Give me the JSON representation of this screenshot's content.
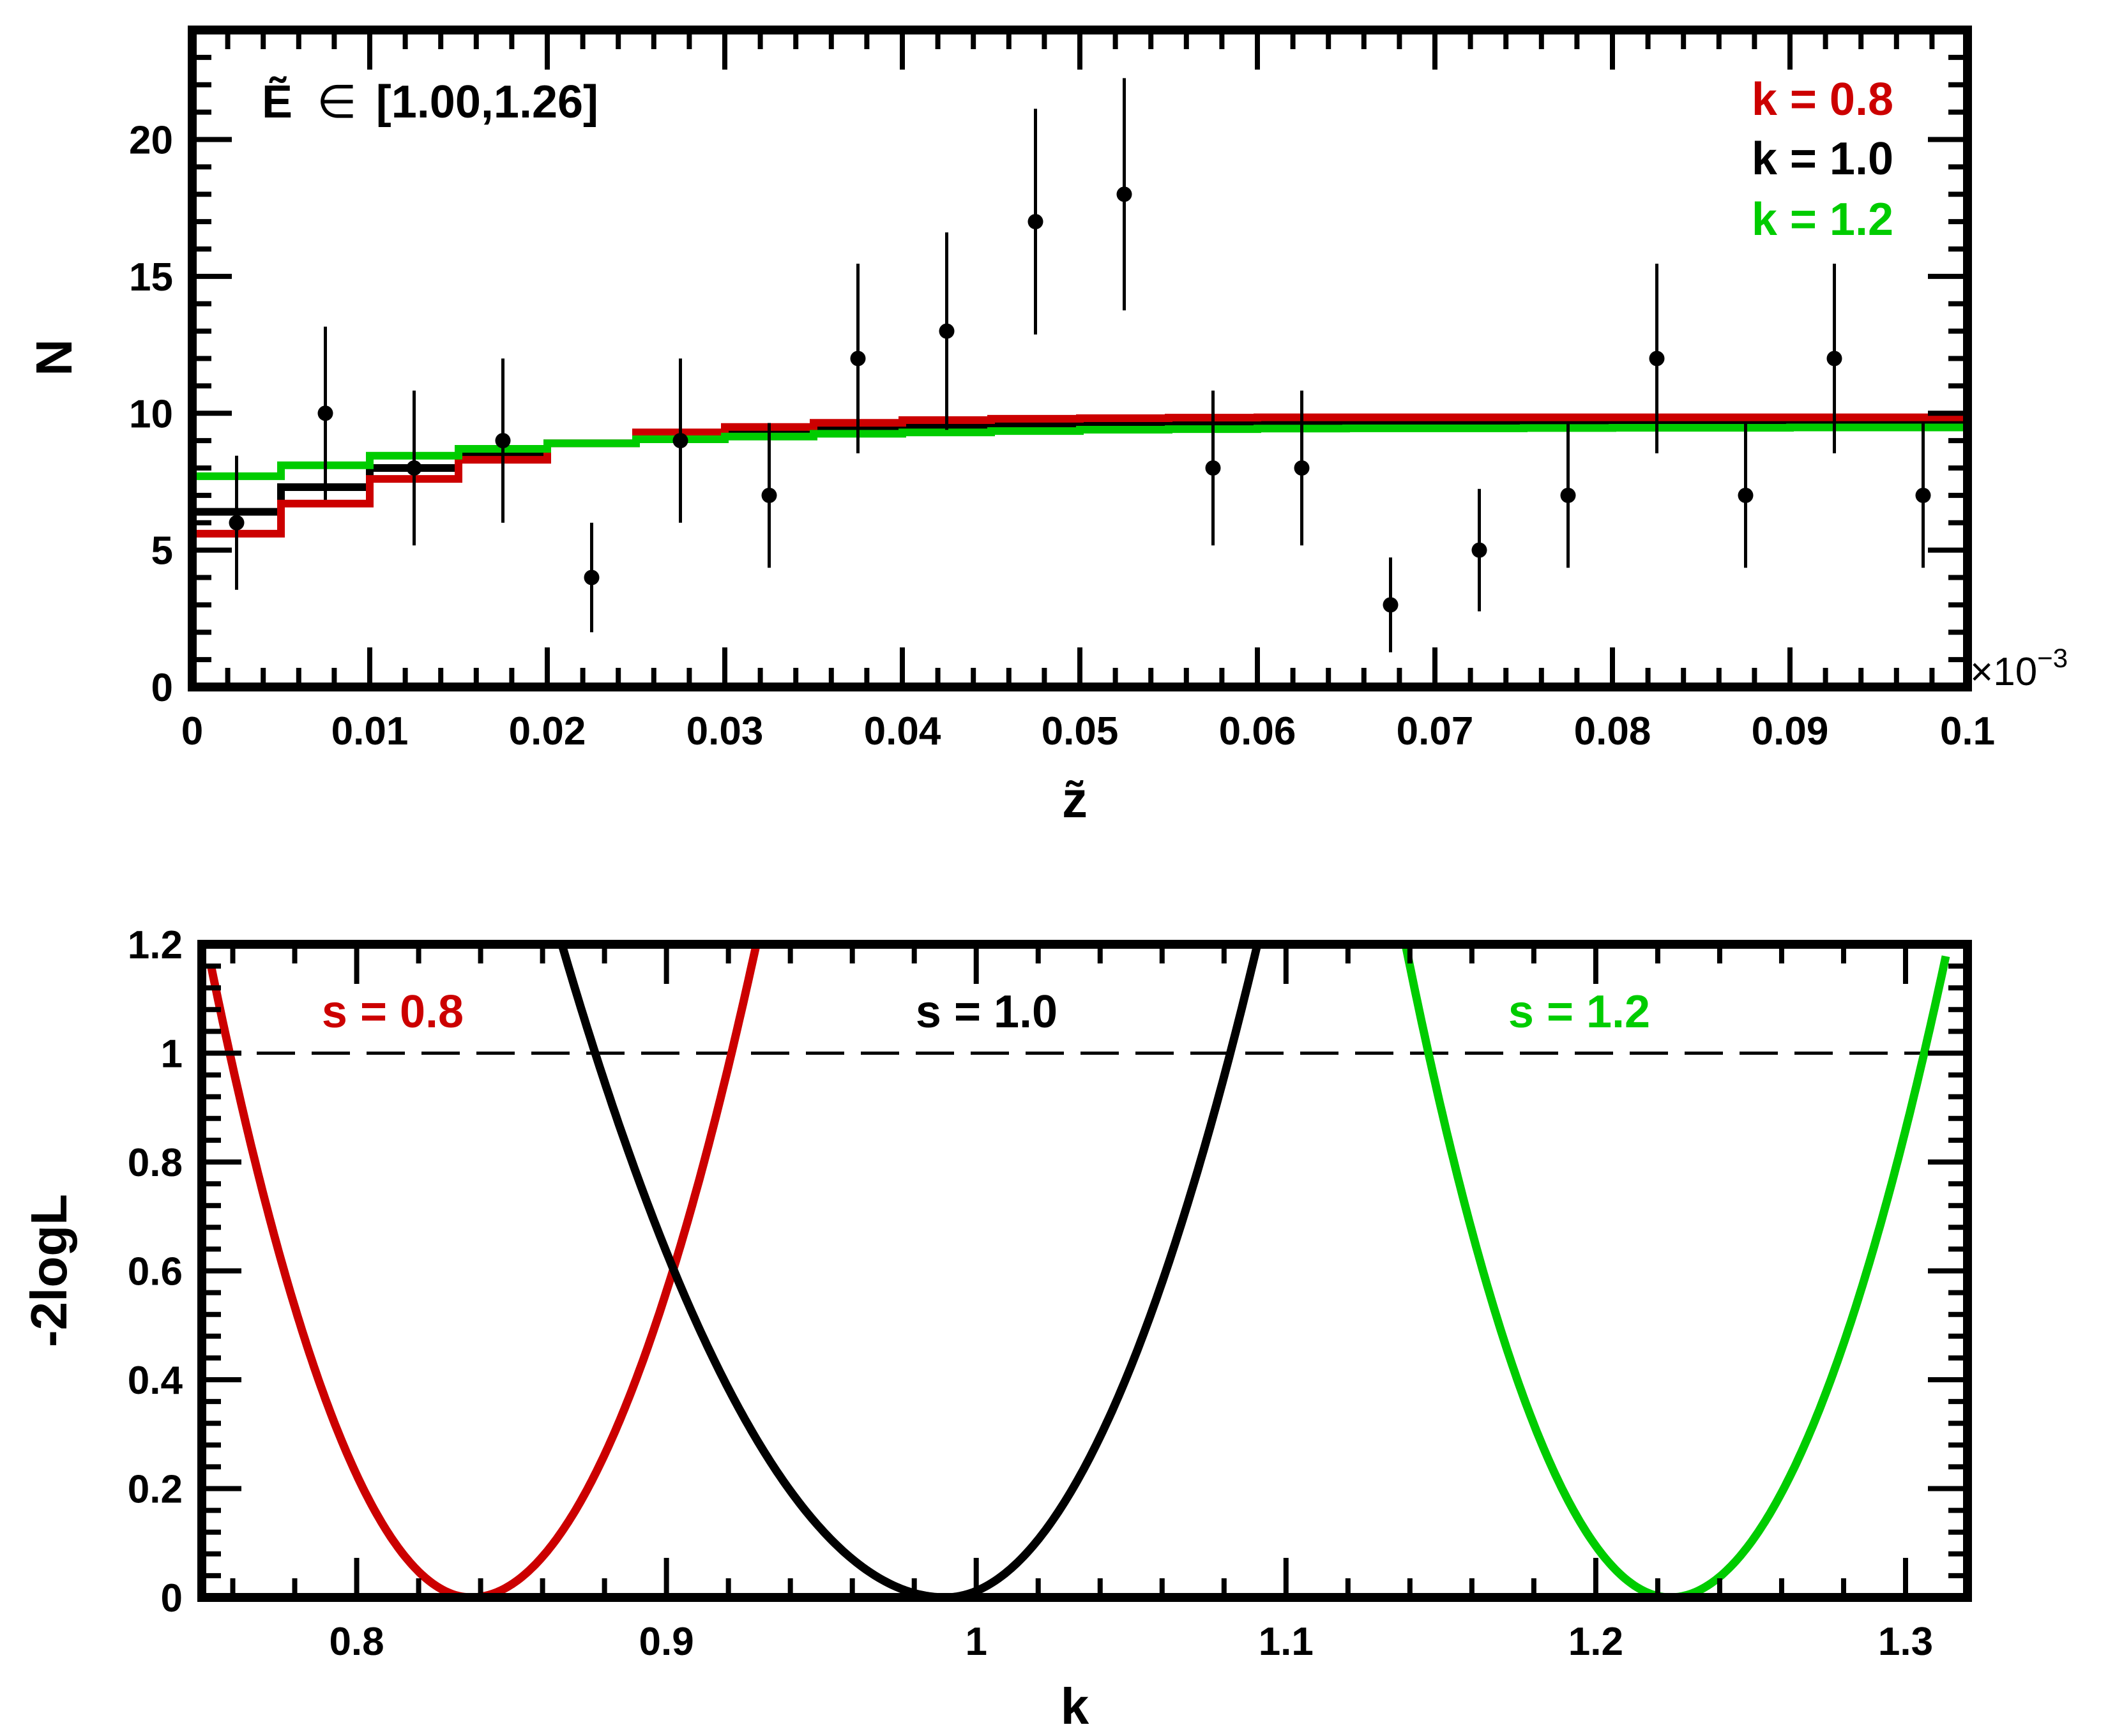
{
  "colors": {
    "red": "#cc0000",
    "black": "#000000",
    "green": "#00cc00"
  },
  "chart_data": [
    {
      "type": "histogram",
      "xlabel": "z̃",
      "ylabel": "N",
      "xlim": [
        0,
        0.1
      ],
      "ylim": [
        0,
        24
      ],
      "x_ticks": [
        "0",
        "0.01",
        "0.02",
        "0.03",
        "0.04",
        "0.05",
        "0.06",
        "0.07",
        "0.08",
        "0.09",
        "0.1"
      ],
      "x_tick_values": [
        0,
        0.01,
        0.02,
        0.03,
        0.04,
        0.05,
        0.06,
        0.07,
        0.08,
        0.09,
        0.1
      ],
      "y_ticks": [
        "0",
        "5",
        "10",
        "15",
        "20"
      ],
      "y_tick_values": [
        0,
        5,
        10,
        15,
        20
      ],
      "x_multiplier": "×10",
      "x_multiplier_exp": "−3",
      "annotation": {
        "prefix": "Ẽ",
        "symbol": "∈",
        "range": "[1.00,1.26]"
      },
      "legend_position": "top-right",
      "data_points": {
        "name": "data",
        "x": [
          0.0025,
          0.0075,
          0.0125,
          0.0175,
          0.0225,
          0.0275,
          0.0325,
          0.0375,
          0.0425,
          0.0475,
          0.0525,
          0.0575,
          0.0625,
          0.0675,
          0.0725,
          0.0775,
          0.0825,
          0.0875,
          0.0925,
          0.0975
        ],
        "y": [
          6,
          10,
          8,
          9,
          4,
          9,
          7,
          12,
          13,
          17,
          18,
          8,
          8,
          3,
          5,
          7,
          12,
          7,
          12,
          7
        ]
      },
      "bin_edges": [
        0,
        0.005,
        0.01,
        0.015,
        0.02,
        0.025,
        0.03,
        0.035,
        0.04,
        0.045,
        0.05,
        0.055,
        0.06,
        0.065,
        0.07,
        0.075,
        0.08,
        0.085,
        0.09,
        0.095,
        0.1
      ],
      "series": [
        {
          "name": "k = 0.8",
          "color": "#cc0000",
          "values": [
            5.6,
            6.7,
            7.6,
            8.3,
            8.9,
            9.3,
            9.5,
            9.65,
            9.75,
            9.8,
            9.82,
            9.84,
            9.85,
            9.85,
            9.85,
            9.85,
            9.85,
            9.85,
            9.85,
            9.85
          ]
        },
        {
          "name": "k = 1.0",
          "color": "#000000",
          "values": [
            6.4,
            7.3,
            8.0,
            8.5,
            8.9,
            9.2,
            9.35,
            9.45,
            9.55,
            9.6,
            9.62,
            9.63,
            9.64,
            9.65,
            9.65,
            9.65,
            9.65,
            9.65,
            9.65,
            9.65
          ]
        },
        {
          "name": "k = 1.2",
          "color": "#00cc00",
          "values": [
            7.7,
            8.1,
            8.45,
            8.7,
            8.9,
            9.05,
            9.15,
            9.25,
            9.3,
            9.35,
            9.4,
            9.42,
            9.44,
            9.45,
            9.45,
            9.46,
            9.47,
            9.47,
            9.48,
            9.48
          ]
        }
      ]
    },
    {
      "type": "line",
      "xlabel": "k",
      "ylabel": "-2logL",
      "xlim": [
        0.75,
        1.32
      ],
      "ylim": [
        0,
        1.2
      ],
      "x_ticks": [
        "0.8",
        "0.9",
        "1",
        "1.1",
        "1.2",
        "1.3"
      ],
      "x_tick_values": [
        0.8,
        0.9,
        1.0,
        1.1,
        1.2,
        1.3
      ],
      "y_ticks": [
        "0",
        "0.2",
        "0.4",
        "0.6",
        "0.8",
        "1",
        "1.2"
      ],
      "y_tick_values": [
        0,
        0.2,
        0.4,
        0.6,
        0.8,
        1.0,
        1.2
      ],
      "reference_line": {
        "y": 1,
        "style": "dashed"
      },
      "series": [
        {
          "name": "s = 0.8",
          "color": "#cc0000",
          "k_min": 0.837,
          "sigma_left": 0.078,
          "sigma_right": 0.084,
          "x_range": [
            0.753,
            0.934
          ]
        },
        {
          "name": "s = 1.0",
          "color": "#000000",
          "k_min": 0.99,
          "sigma_left": 0.113,
          "sigma_right": 0.092,
          "x_range": [
            0.855,
            1.1
          ]
        },
        {
          "name": "s = 1.2",
          "color": "#00cc00",
          "k_min": 1.224,
          "sigma_left": 0.078,
          "sigma_right": 0.082,
          "x_range": [
            1.138,
            1.313
          ]
        }
      ]
    }
  ]
}
